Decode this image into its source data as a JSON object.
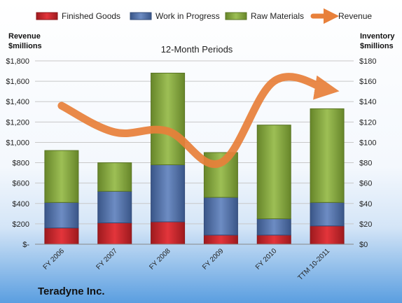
{
  "chart_data": {
    "type": "bar",
    "stacked": true,
    "title": "12-Month Periods",
    "company": "Teradyne Inc.",
    "left_axis_label": [
      "Revenue",
      "$millions"
    ],
    "right_axis_label": [
      "Inventory",
      "$millions"
    ],
    "categories": [
      "FY 2006",
      "FY 2007",
      "FY 2008",
      "FY 2009",
      "FY 2010",
      "TTM 10-2011"
    ],
    "series": [
      {
        "name": "Finished Goods",
        "axis": "right",
        "color": "#cc2229",
        "values": [
          16,
          21,
          22,
          9,
          9,
          18
        ]
      },
      {
        "name": "Work in Progress",
        "axis": "right",
        "color": "#4f6fa8",
        "values": [
          25,
          31,
          56,
          37,
          16,
          23
        ]
      },
      {
        "name": "Raw Materials",
        "axis": "right",
        "color": "#86a83c",
        "values": [
          51,
          28,
          90,
          44,
          92,
          92
        ]
      }
    ],
    "line_series": {
      "name": "Revenue",
      "axis": "left",
      "color": "#e8803a",
      "values": [
        1360,
        1100,
        1110,
        800,
        1600,
        1520
      ]
    },
    "left_ylim": [
      0,
      1800
    ],
    "left_ticks": [
      "$-",
      "$200",
      "$400",
      "$600",
      "$800",
      "$1,000",
      "$1,200",
      "$1,400",
      "$1,600",
      "$1,800"
    ],
    "right_ylim": [
      0,
      180
    ],
    "right_ticks": [
      "$0",
      "$20",
      "$40",
      "$60",
      "$80",
      "$100",
      "$120",
      "$140",
      "$160",
      "$180"
    ],
    "legend_position": "top",
    "grid": true
  }
}
